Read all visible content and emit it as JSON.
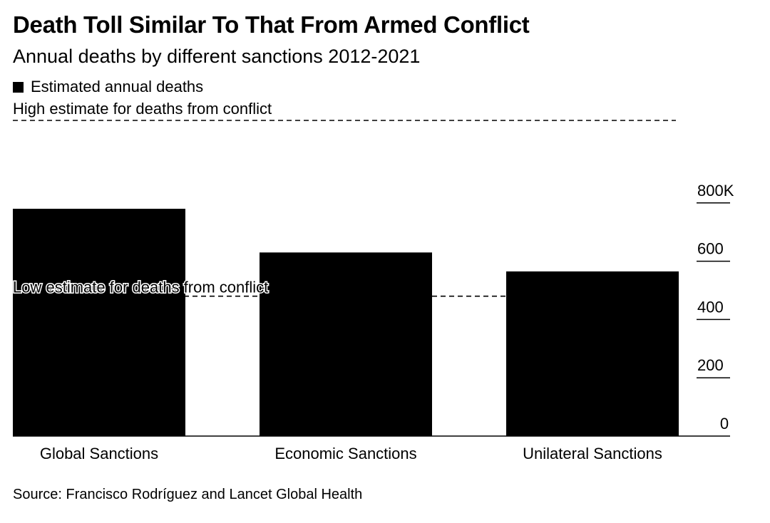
{
  "colors": {
    "bar": "#000000",
    "reference_line": "#000000",
    "axis": "#000000",
    "background": "#ffffff"
  },
  "source": "Source: Francisco Rodríguez and Lancet Global Health",
  "chart_data": {
    "type": "bar",
    "title": "Death Toll Similar To That From Armed Conflict",
    "subtitle": "Annual deaths by different sanctions 2012-2021",
    "categories": [
      "Global Sanctions",
      "Economic Sanctions",
      "Unilateral Sanctions"
    ],
    "series": [
      {
        "name": "Estimated annual deaths",
        "values": [
          780000,
          630000,
          565000
        ]
      }
    ],
    "reference_lines": [
      {
        "label": "High estimate for deaths from conflict",
        "value": 1110000,
        "style": "dashed"
      },
      {
        "label": "Low estimate for deaths from conflict",
        "value": 480000,
        "style": "dashed"
      }
    ],
    "yticks": [
      0,
      200,
      400,
      600,
      800
    ],
    "ytick_labels": [
      "0",
      "200",
      "400",
      "600",
      "800K"
    ],
    "ylim": [
      0,
      1110000
    ],
    "y_axis_position": "right",
    "legend_position": "top-left",
    "grid": false,
    "xlabel": "",
    "ylabel": ""
  }
}
